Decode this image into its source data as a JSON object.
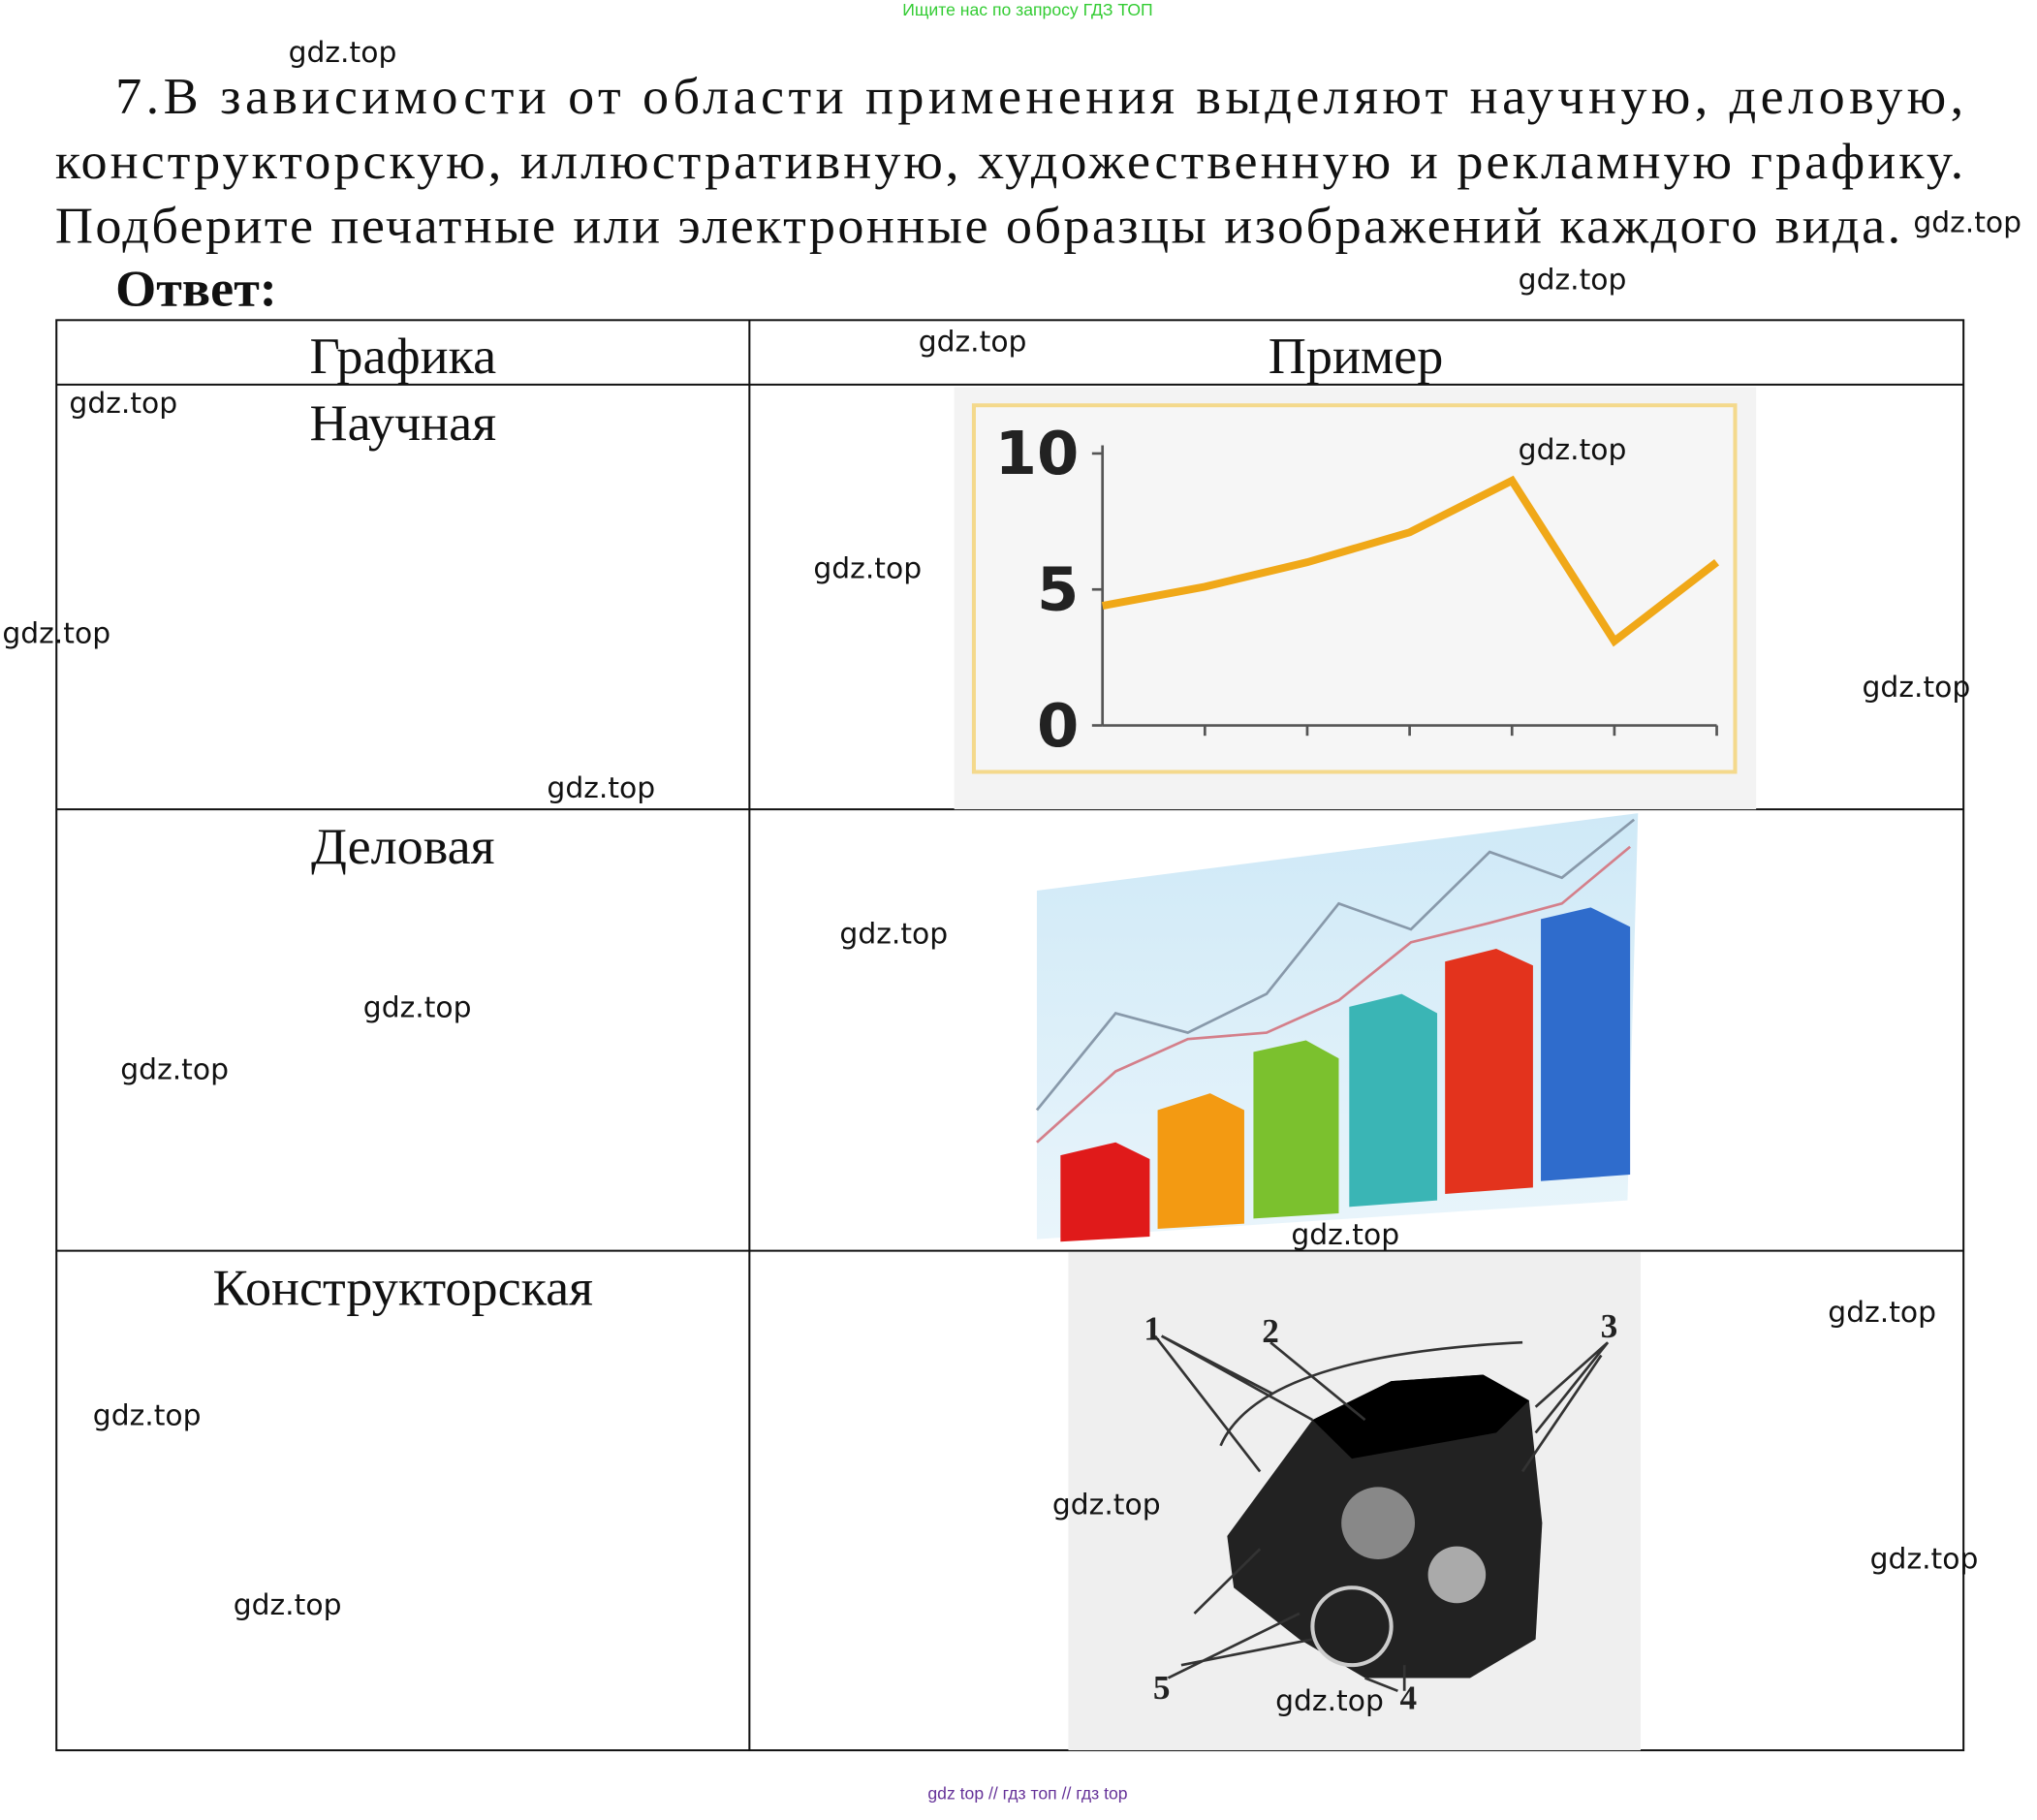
{
  "header": {
    "note": "Ищите нас по запросу ГДЗ ТОП"
  },
  "task": {
    "lines": [
      "7.В зависимости от области применения выделяют научную, деловую,",
      "конструкторскую, иллюстративную, художественную и рекламную графику.",
      "Подберите печатные или электронные образцы изображений каждого вида."
    ],
    "answer": "Ответ:"
  },
  "table": {
    "columns": [
      "Графика",
      "Пример"
    ],
    "rows": [
      {
        "graphics": "Научная",
        "example": {
          "type": "line",
          "ylim": [
            0,
            10.3
          ],
          "yticks": [
            0,
            5,
            10
          ],
          "values": [
            4.4,
            5.1,
            6.0,
            7.1,
            9.0,
            3.1,
            6.0
          ],
          "color": "#f0a818"
        }
      },
      {
        "graphics": "Деловая"
      },
      {
        "graphics": "Конструкторская",
        "example": {
          "labels": [
            "1",
            "2",
            "3",
            "4",
            "5"
          ]
        }
      }
    ]
  },
  "watermarks": [
    "gdz.top",
    "gdz.top",
    "gdz.top",
    "gdz.top",
    "gdz.top",
    "gdz.top",
    "gdz.top",
    "gdz.top",
    "gdz.top",
    "gdz.top",
    "gdz.top",
    "gdz.top",
    "gdz.top",
    "gdz.top",
    "gdz.top",
    "gdz.top",
    "gdz.top",
    "gdz.top",
    "gdz.top",
    "gdz.top"
  ],
  "footer": "gdz top // гдз топ // гдз top"
}
